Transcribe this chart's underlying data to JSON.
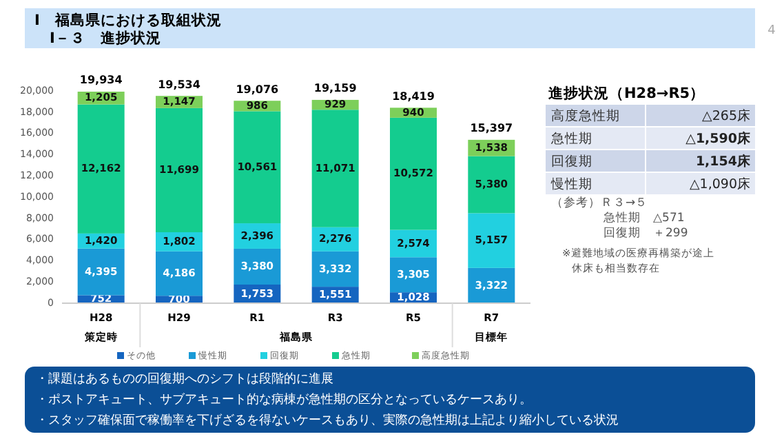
{
  "chart_data": [
    {
      "type": "bar",
      "stacked": true,
      "title": "Ⅰ　福島県における取組状況",
      "subtitle": "Ⅰ－３　進捗状況",
      "categories": [
        "H28",
        "H29",
        "R1",
        "R3",
        "R5",
        "R7"
      ],
      "series": [
        {
          "name": "その他",
          "color": "#1565c0",
          "values": [
            752,
            700,
            1753,
            1551,
            1028,
            null
          ],
          "value_labels": [
            "752",
            "700",
            "1,753",
            "1,551",
            "1,028",
            null
          ]
        },
        {
          "name": "慢性期",
          "color": "#1a9ad6",
          "values": [
            4395,
            4186,
            3380,
            3332,
            3305,
            3322
          ],
          "value_labels": [
            "4,395",
            "4,186",
            "3,380",
            "3,332",
            "3,305",
            "3,322"
          ]
        },
        {
          "name": "回復期",
          "color": "#22d0e0",
          "values": [
            1420,
            1802,
            2396,
            2276,
            2574,
            5157
          ],
          "value_labels": [
            "1,420",
            "1,802",
            "2,396",
            "2,276",
            "2,574",
            "5,157"
          ]
        },
        {
          "name": "急性期",
          "color": "#14cc8f",
          "values": [
            12162,
            11699,
            10561,
            11071,
            10572,
            5380
          ],
          "value_labels": [
            "12,162",
            "11,699",
            "10,561",
            "11,071",
            "10,572",
            "5,380"
          ]
        },
        {
          "name": "高度急性期",
          "color": "#7dcf5a",
          "values": [
            1205,
            1147,
            986,
            929,
            940,
            1538
          ],
          "value_labels": [
            "1,205",
            "1,147",
            "986",
            "929",
            "940",
            "1,538"
          ]
        }
      ],
      "totals": [
        "19,934",
        "19,534",
        "19,076",
        "19,159",
        "18,419",
        "15,397"
      ],
      "ylim": [
        0,
        20000
      ],
      "yticks": [
        0,
        {
          "value": 2000,
          "label": "2,000"
        },
        {
          "value": 4000,
          "label": "4,000"
        },
        {
          "value": 6000,
          "label": "6,000"
        },
        {
          "value": 8000,
          "label": "8,000"
        },
        {
          "value": 10000,
          "label": "10,000"
        },
        {
          "value": 12000,
          "label": "12,000"
        },
        {
          "value": 14000,
          "label": "14,000"
        },
        {
          "value": 16000,
          "label": "16,000"
        },
        {
          "value": 18000,
          "label": "18,000"
        },
        {
          "value": 20000,
          "label": "20,000"
        }
      ],
      "legend": "bottom",
      "annotations": [
        "策定時",
        "福島県",
        "目標年"
      ]
    },
    {
      "type": "other",
      "title": "進捗状況（H28→R5）",
      "annotations": [
        "高度急性期",
        "△265床",
        "急性期",
        "△1,590床",
        "回復期",
        "1,154床",
        "慢性期",
        "△1,090床",
        "（参考）Ｒ３→５",
        "急性期　△571",
        "回復期　＋299",
        "※避難地域の医療再構築が途上",
        "休床も相当数存在"
      ]
    },
    {
      "type": "other",
      "annotations": [
        "・課題はあるものの回復期へのシフトは段階的に進展",
        "・ポストアキュート、サブアキュート的な病棟が急性期の区分となっているケースあり。",
        "・スタッフ確保面で稼働率を下げざるを得ないケースもあり、実際の急性期は上記より縮小している状況",
        "4"
      ]
    }
  ]
}
